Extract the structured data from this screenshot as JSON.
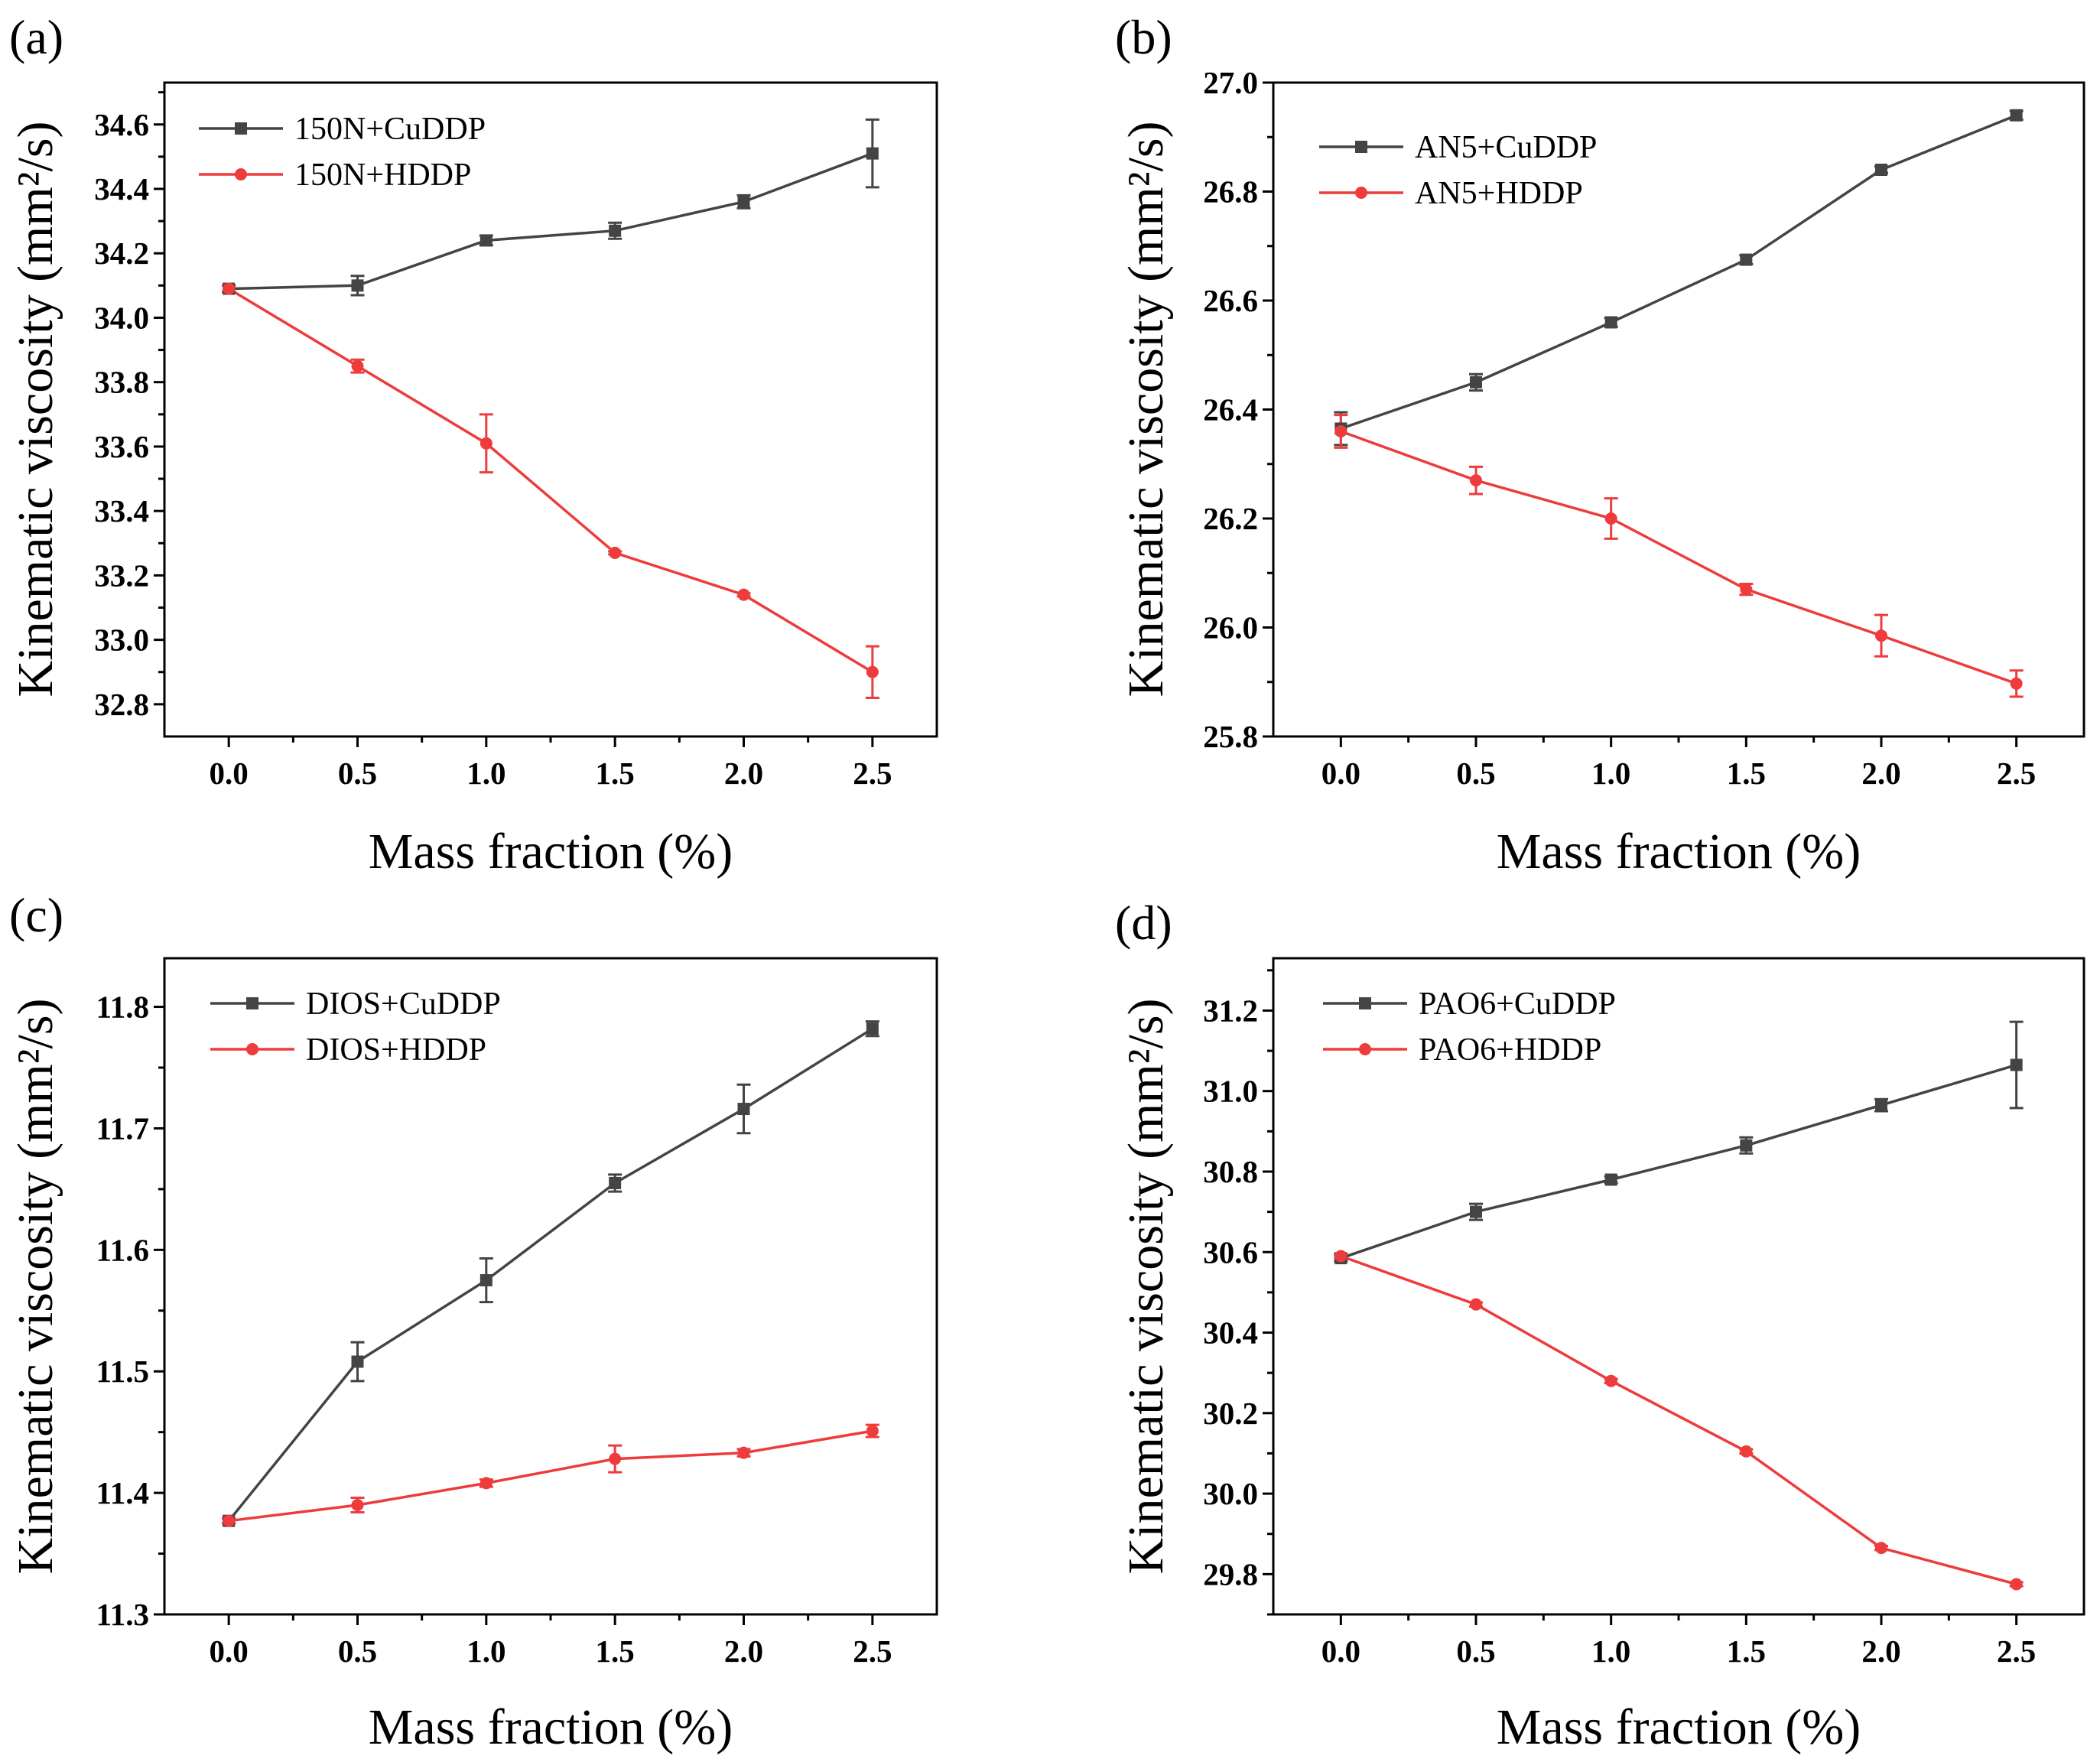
{
  "chart_data": [
    {
      "type": "line",
      "panel_label": "(a)",
      "xlabel": "Mass fraction (%)",
      "ylabel": "Kinematic viscosity (mm²/s)",
      "x": [
        0.0,
        0.5,
        1.0,
        1.5,
        2.0,
        2.5
      ],
      "xticks": [
        "0.0",
        "0.5",
        "1.0",
        "1.5",
        "2.0",
        "2.5"
      ],
      "xlim": [
        -0.25,
        2.75
      ],
      "ylim": [
        32.7,
        34.73
      ],
      "yticks": [
        "32.8",
        "33.0",
        "33.2",
        "33.4",
        "33.6",
        "33.8",
        "34.0",
        "34.2",
        "34.4",
        "34.6"
      ],
      "legend_position": "top-left",
      "series": [
        {
          "name": "150N+CuDDP",
          "color": "#444444",
          "marker": "square",
          "values": [
            34.09,
            34.1,
            34.24,
            34.27,
            34.36,
            34.51
          ],
          "errors": [
            0.01,
            0.03,
            0.015,
            0.025,
            0.02,
            0.105
          ]
        },
        {
          "name": "150N+HDDP",
          "color": "#ee3b3b",
          "marker": "circle",
          "values": [
            34.09,
            33.85,
            33.61,
            33.27,
            33.14,
            32.9
          ],
          "errors": [
            0.01,
            0.02,
            0.09,
            0.005,
            0.005,
            0.08
          ]
        }
      ]
    },
    {
      "type": "line",
      "panel_label": "(b)",
      "xlabel": "Mass fraction (%)",
      "ylabel": "Kinematic viscosity (mm²/s)",
      "x": [
        0.0,
        0.5,
        1.0,
        1.5,
        2.0,
        2.5
      ],
      "xticks": [
        "0.0",
        "0.5",
        "1.0",
        "1.5",
        "2.0",
        "2.5"
      ],
      "xlim": [
        -0.25,
        2.75
      ],
      "ylim": [
        25.8,
        27.0
      ],
      "yticks": [
        "25.8",
        "26.0",
        "26.2",
        "26.4",
        "26.6",
        "26.8",
        "27.0"
      ],
      "legend_position": "top-left",
      "series": [
        {
          "name": "AN5+CuDDP",
          "color": "#444444",
          "marker": "square",
          "values": [
            26.365,
            26.45,
            26.56,
            26.675,
            26.84,
            26.94
          ],
          "errors": [
            0.03,
            0.015,
            0.008,
            0.008,
            0.006,
            0.008
          ]
        },
        {
          "name": "AN5+HDDP",
          "color": "#ee3b3b",
          "marker": "circle",
          "values": [
            26.36,
            26.27,
            26.2,
            26.07,
            25.985,
            25.897
          ],
          "errors": [
            0.03,
            0.025,
            0.037,
            0.01,
            0.038,
            0.024
          ]
        }
      ]
    },
    {
      "type": "line",
      "panel_label": "(c)",
      "xlabel": "Mass fraction (%)",
      "ylabel": "Kinematic viscosity (mm²/s)",
      "x": [
        0.0,
        0.5,
        1.0,
        1.5,
        2.0,
        2.5
      ],
      "xticks": [
        "0.0",
        "0.5",
        "1.0",
        "1.5",
        "2.0",
        "2.5"
      ],
      "xlim": [
        -0.25,
        2.75
      ],
      "ylim": [
        11.3,
        11.84
      ],
      "yticks": [
        "11.3",
        "11.4",
        "11.5",
        "11.6",
        "11.7",
        "11.8"
      ],
      "legend_position": "top-left",
      "series": [
        {
          "name": "DIOS+CuDDP",
          "color": "#444444",
          "marker": "square",
          "values": [
            11.377,
            11.508,
            11.575,
            11.655,
            11.716,
            11.782
          ],
          "errors": [
            0.002,
            0.016,
            0.018,
            0.007,
            0.02,
            0.006
          ]
        },
        {
          "name": "DIOS+HDDP",
          "color": "#ee3b3b",
          "marker": "circle",
          "values": [
            11.377,
            11.39,
            11.408,
            11.428,
            11.433,
            11.451
          ],
          "errors": [
            0.002,
            0.006,
            0.003,
            0.011,
            0.003,
            0.005
          ]
        }
      ]
    },
    {
      "type": "line",
      "panel_label": "(d)",
      "xlabel": "Mass fraction (%)",
      "ylabel": "Kinematic viscosity (mm²/s)",
      "x": [
        0.0,
        0.5,
        1.0,
        1.5,
        2.0,
        2.5
      ],
      "xticks": [
        "0.0",
        "0.5",
        "1.0",
        "1.5",
        "2.0",
        "2.5"
      ],
      "xlim": [
        -0.25,
        2.75
      ],
      "ylim": [
        29.7,
        31.33
      ],
      "yticks": [
        "29.8",
        "30.0",
        "30.2",
        "30.4",
        "30.6",
        "30.8",
        "31.0",
        "31.2"
      ],
      "legend_position": "top-left",
      "series": [
        {
          "name": "PAO6+CuDDP",
          "color": "#444444",
          "marker": "square",
          "values": [
            30.585,
            30.7,
            30.78,
            30.865,
            30.965,
            31.065
          ],
          "errors": [
            0.008,
            0.02,
            0.008,
            0.02,
            0.015,
            0.107
          ]
        },
        {
          "name": "PAO6+HDDP",
          "color": "#ee3b3b",
          "marker": "circle",
          "values": [
            30.59,
            30.47,
            30.28,
            30.105,
            29.865,
            29.775
          ],
          "errors": [
            0.005,
            0.005,
            0.005,
            0.005,
            0.005,
            0.005
          ]
        }
      ]
    }
  ]
}
